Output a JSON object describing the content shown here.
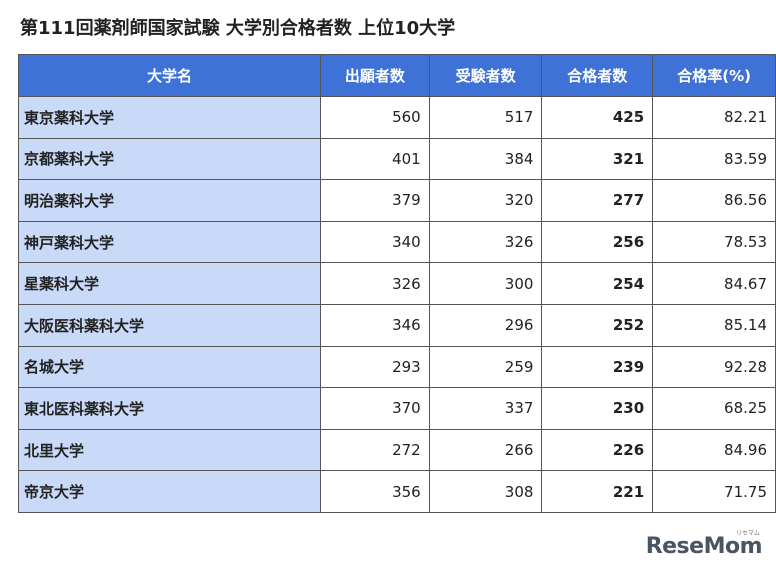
{
  "header": {
    "title": "第111回薬剤師国家試験 大学別合格者数 上位10大学"
  },
  "table": {
    "columns": [
      "大学名",
      "出願者数",
      "受験者数",
      "合格者数",
      "合格率(%)"
    ],
    "rows": [
      [
        "東京薬科大学",
        560,
        517,
        425,
        82.21
      ],
      [
        "京都薬科大学",
        401,
        384,
        321,
        83.59
      ],
      [
        "明治薬科大学",
        379,
        320,
        277,
        86.56
      ],
      [
        "神戸薬科大学",
        340,
        326,
        256,
        78.53
      ],
      [
        "星薬科大学",
        326,
        300,
        254,
        84.67
      ],
      [
        "大阪医科薬科大学",
        346,
        296,
        252,
        85.14
      ],
      [
        "名城大学",
        293,
        259,
        239,
        92.28
      ],
      [
        "東北医科薬科大学",
        370,
        337,
        230,
        68.25
      ],
      [
        "北里大学",
        272,
        266,
        226,
        84.96
      ],
      [
        "帝京大学",
        356,
        308,
        221,
        71.75
      ]
    ]
  },
  "logo": {
    "text": "ReseMom",
    "subtext": "リセマム"
  }
}
